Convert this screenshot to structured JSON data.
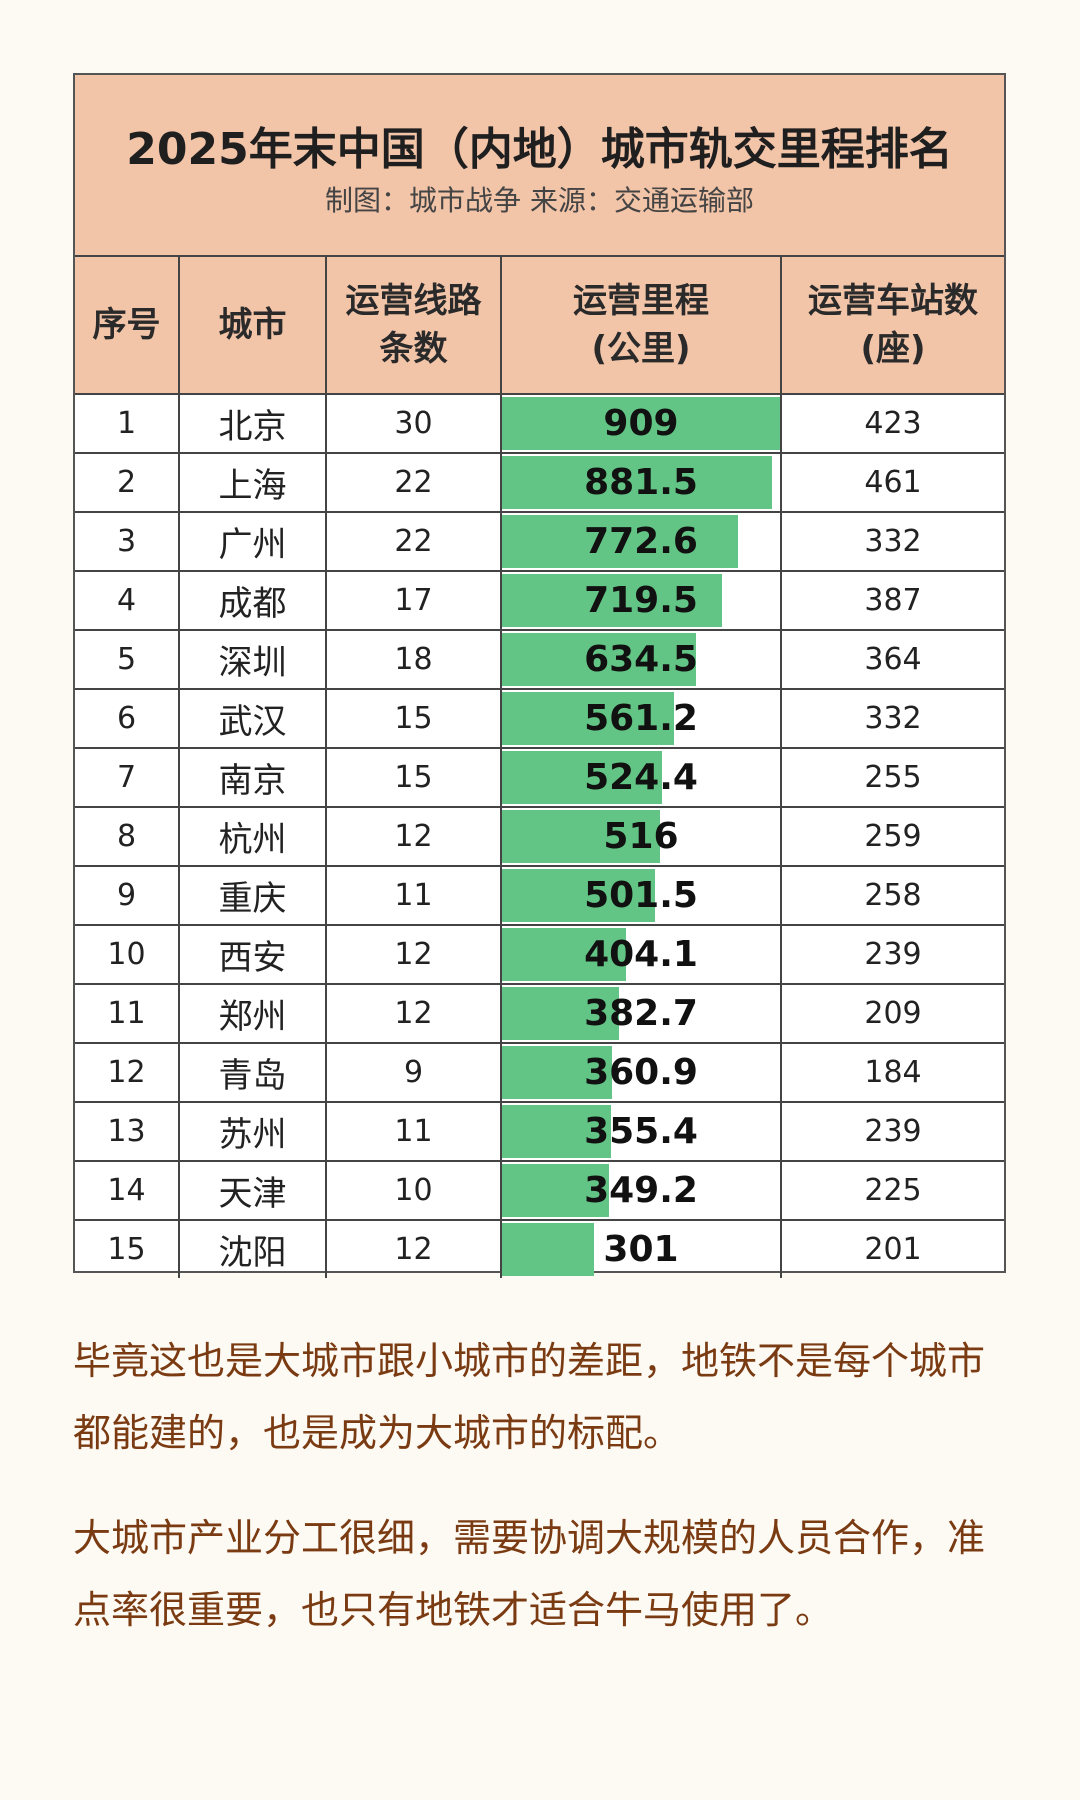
{
  "table": {
    "title": "2025年末中国（内地）城市轨交里程排名",
    "subtitle": "制图：城市战争    来源：交通运输部",
    "headers": {
      "rank": "序号",
      "city": "城市",
      "lines": "运营线路\n条数",
      "mileage": "运营里程\n(公里)",
      "stations": "运营车站数\n(座)"
    },
    "bar_color": "#63c585",
    "header_color": "#f2c4a8",
    "max_mileage": 909,
    "rows": [
      {
        "rank": "1",
        "city": "北京",
        "lines": "30",
        "mileage": "909",
        "stations": "423"
      },
      {
        "rank": "2",
        "city": "上海",
        "lines": "22",
        "mileage": "881.5",
        "stations": "461"
      },
      {
        "rank": "3",
        "city": "广州",
        "lines": "22",
        "mileage": "772.6",
        "stations": "332"
      },
      {
        "rank": "4",
        "city": "成都",
        "lines": "17",
        "mileage": "719.5",
        "stations": "387"
      },
      {
        "rank": "5",
        "city": "深圳",
        "lines": "18",
        "mileage": "634.5",
        "stations": "364"
      },
      {
        "rank": "6",
        "city": "武汉",
        "lines": "15",
        "mileage": "561.2",
        "stations": "332"
      },
      {
        "rank": "7",
        "city": "南京",
        "lines": "15",
        "mileage": "524.4",
        "stations": "255"
      },
      {
        "rank": "8",
        "city": "杭州",
        "lines": "12",
        "mileage": "516",
        "stations": "259"
      },
      {
        "rank": "9",
        "city": "重庆",
        "lines": "11",
        "mileage": "501.5",
        "stations": "258"
      },
      {
        "rank": "10",
        "city": "西安",
        "lines": "12",
        "mileage": "404.1",
        "stations": "239"
      },
      {
        "rank": "11",
        "city": "郑州",
        "lines": "12",
        "mileage": "382.7",
        "stations": "209"
      },
      {
        "rank": "12",
        "city": "青岛",
        "lines": "9",
        "mileage": "360.9",
        "stations": "184"
      },
      {
        "rank": "13",
        "city": "苏州",
        "lines": "11",
        "mileage": "355.4",
        "stations": "239"
      },
      {
        "rank": "14",
        "city": "天津",
        "lines": "10",
        "mileage": "349.2",
        "stations": "225"
      },
      {
        "rank": "15",
        "city": "沈阳",
        "lines": "12",
        "mileage": "301",
        "stations": "201"
      }
    ]
  },
  "paragraphs": [
    "毕竟这也是大城市跟小城市的差距，地铁不是每个城市都能建的，也是成为大城市的标配。",
    "大城市产业分工很细，需要协调大规模的人员合作，准点率很重要，也只有地铁才适合牛马使用了。"
  ],
  "text_color": "#7a3b12"
}
